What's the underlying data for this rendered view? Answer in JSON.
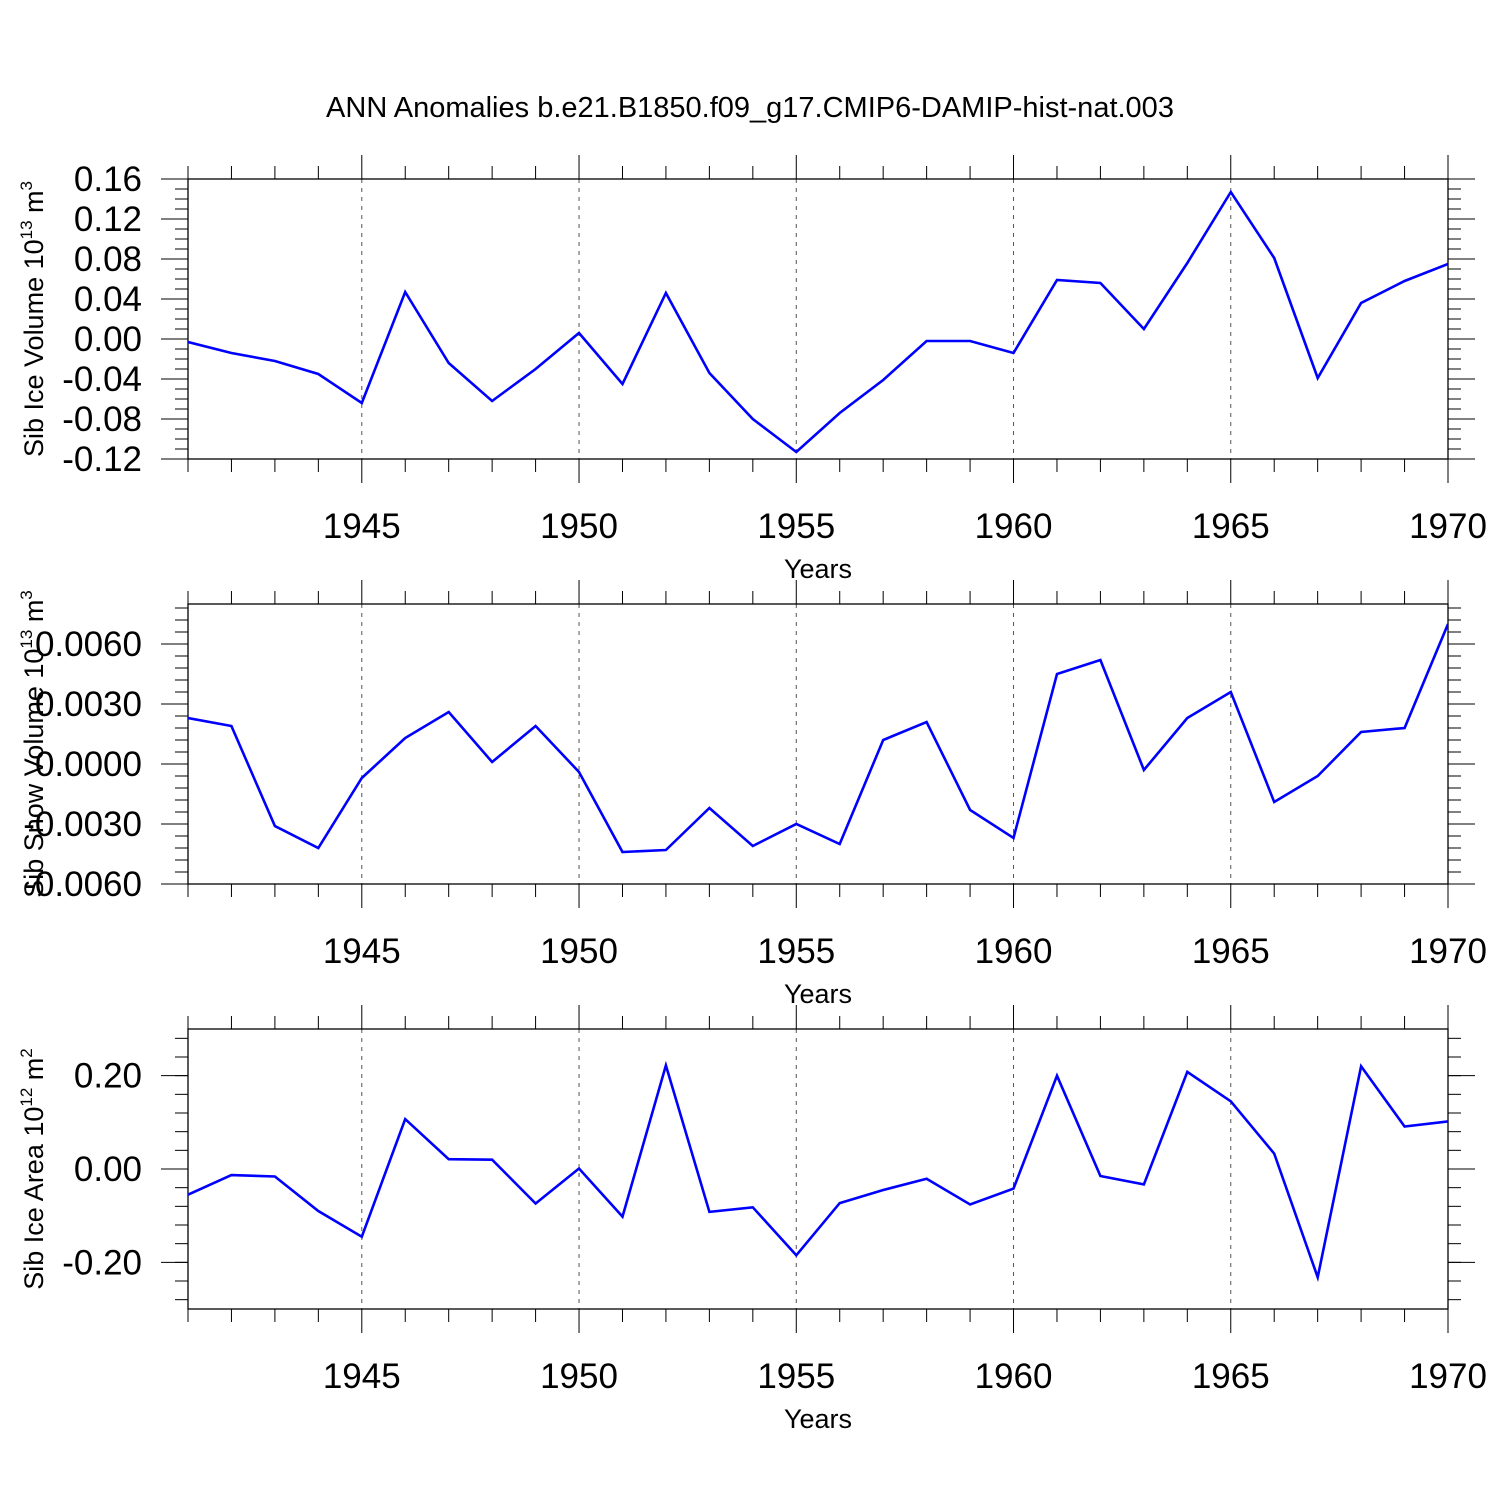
{
  "title": "ANN Anomalies b.e21.B1850.f09_g17.CMIP6-DAMIP-hist-nat.003",
  "colors": {
    "line": "#0000ff",
    "axis": "#000000",
    "grid": "#555555",
    "background": "#ffffff"
  },
  "chart_data": [
    {
      "type": "line",
      "ylabel": {
        "base": "Sib Ice Volume 10",
        "exp": "13",
        "unit": " m",
        "unit_exp": "3"
      },
      "xlabel": "Years",
      "xlim": [
        1941,
        1970
      ],
      "ylim": [
        -0.12,
        0.16
      ],
      "xticks": [
        "1945",
        "1950",
        "1955",
        "1960",
        "1965",
        "1970"
      ],
      "yticks": [
        "-0.12",
        "-0.08",
        "-0.04",
        "0.00",
        "0.04",
        "0.08",
        "0.12",
        "0.16"
      ],
      "grid": "vertical dashed lines at labeled years",
      "series": [
        {
          "x": [
            1941,
            1942,
            1943,
            1944,
            1945,
            1946,
            1947,
            1948,
            1949,
            1950,
            1951,
            1952,
            1953,
            1954,
            1955,
            1956,
            1957,
            1958,
            1959,
            1960,
            1961,
            1962,
            1963,
            1964,
            1965,
            1966,
            1967,
            1968,
            1969,
            1970
          ],
          "values": [
            -0.003,
            -0.014,
            -0.022,
            -0.035,
            -0.064,
            0.047,
            -0.024,
            -0.062,
            -0.03,
            0.006,
            -0.045,
            0.046,
            -0.034,
            -0.08,
            -0.113,
            -0.074,
            -0.041,
            -0.002,
            -0.002,
            -0.014,
            0.059,
            0.056,
            0.01,
            0.076,
            0.147,
            0.081,
            -0.039,
            0.036,
            0.058,
            0.075
          ]
        }
      ]
    },
    {
      "type": "line",
      "ylabel": {
        "base": "Sib Snow Volume 10",
        "exp": "13",
        "unit": " m",
        "unit_exp": "3"
      },
      "xlabel": "Years",
      "xlim": [
        1941,
        1970
      ],
      "ylim": [
        -0.006,
        0.008
      ],
      "xticks": [
        "1945",
        "1950",
        "1955",
        "1960",
        "1965",
        "1970"
      ],
      "yticks": [
        "-0.0060",
        "-0.0030",
        "0.0000",
        "0.0030",
        "0.0060"
      ],
      "grid": "vertical dashed lines at labeled years",
      "series": [
        {
          "x": [
            1941,
            1942,
            1943,
            1944,
            1945,
            1946,
            1947,
            1948,
            1949,
            1950,
            1951,
            1952,
            1953,
            1954,
            1955,
            1956,
            1957,
            1958,
            1959,
            1960,
            1961,
            1962,
            1963,
            1964,
            1965,
            1966,
            1967,
            1968,
            1969,
            1970
          ],
          "values": [
            0.0023,
            0.0019,
            -0.0031,
            -0.0042,
            -0.0007,
            0.0013,
            0.0026,
            0.0001,
            0.0019,
            -0.0004,
            -0.0044,
            -0.0043,
            -0.0022,
            -0.0041,
            -0.003,
            -0.004,
            0.0012,
            0.0021,
            -0.0023,
            -0.0037,
            0.0045,
            0.0052,
            -0.0003,
            0.0023,
            0.0036,
            -0.0019,
            -0.0006,
            0.0016,
            0.0018,
            0.007
          ]
        }
      ]
    },
    {
      "type": "line",
      "ylabel": {
        "base": "Sib Ice Area 10",
        "exp": "12",
        "unit": " m",
        "unit_exp": "2"
      },
      "xlabel": "Years",
      "xlim": [
        1941,
        1970
      ],
      "ylim": [
        -0.3,
        0.3
      ],
      "xticks": [
        "1945",
        "1950",
        "1955",
        "1960",
        "1965",
        "1970"
      ],
      "yticks": [
        "-0.20",
        "0.00",
        "0.20"
      ],
      "grid": "vertical dashed lines at labeled years",
      "series": [
        {
          "x": [
            1941,
            1942,
            1943,
            1944,
            1945,
            1946,
            1947,
            1948,
            1949,
            1950,
            1951,
            1952,
            1953,
            1954,
            1955,
            1956,
            1957,
            1958,
            1959,
            1960,
            1961,
            1962,
            1963,
            1964,
            1965,
            1966,
            1967,
            1968,
            1969,
            1970
          ],
          "values": [
            -0.055,
            -0.013,
            -0.016,
            -0.09,
            -0.145,
            0.107,
            0.021,
            0.02,
            -0.074,
            0.001,
            -0.102,
            0.222,
            -0.092,
            -0.082,
            -0.185,
            -0.073,
            -0.045,
            -0.021,
            -0.076,
            -0.042,
            0.2,
            -0.015,
            -0.033,
            0.208,
            0.145,
            0.033,
            -0.232,
            0.22,
            0.091,
            0.102
          ]
        }
      ]
    }
  ]
}
